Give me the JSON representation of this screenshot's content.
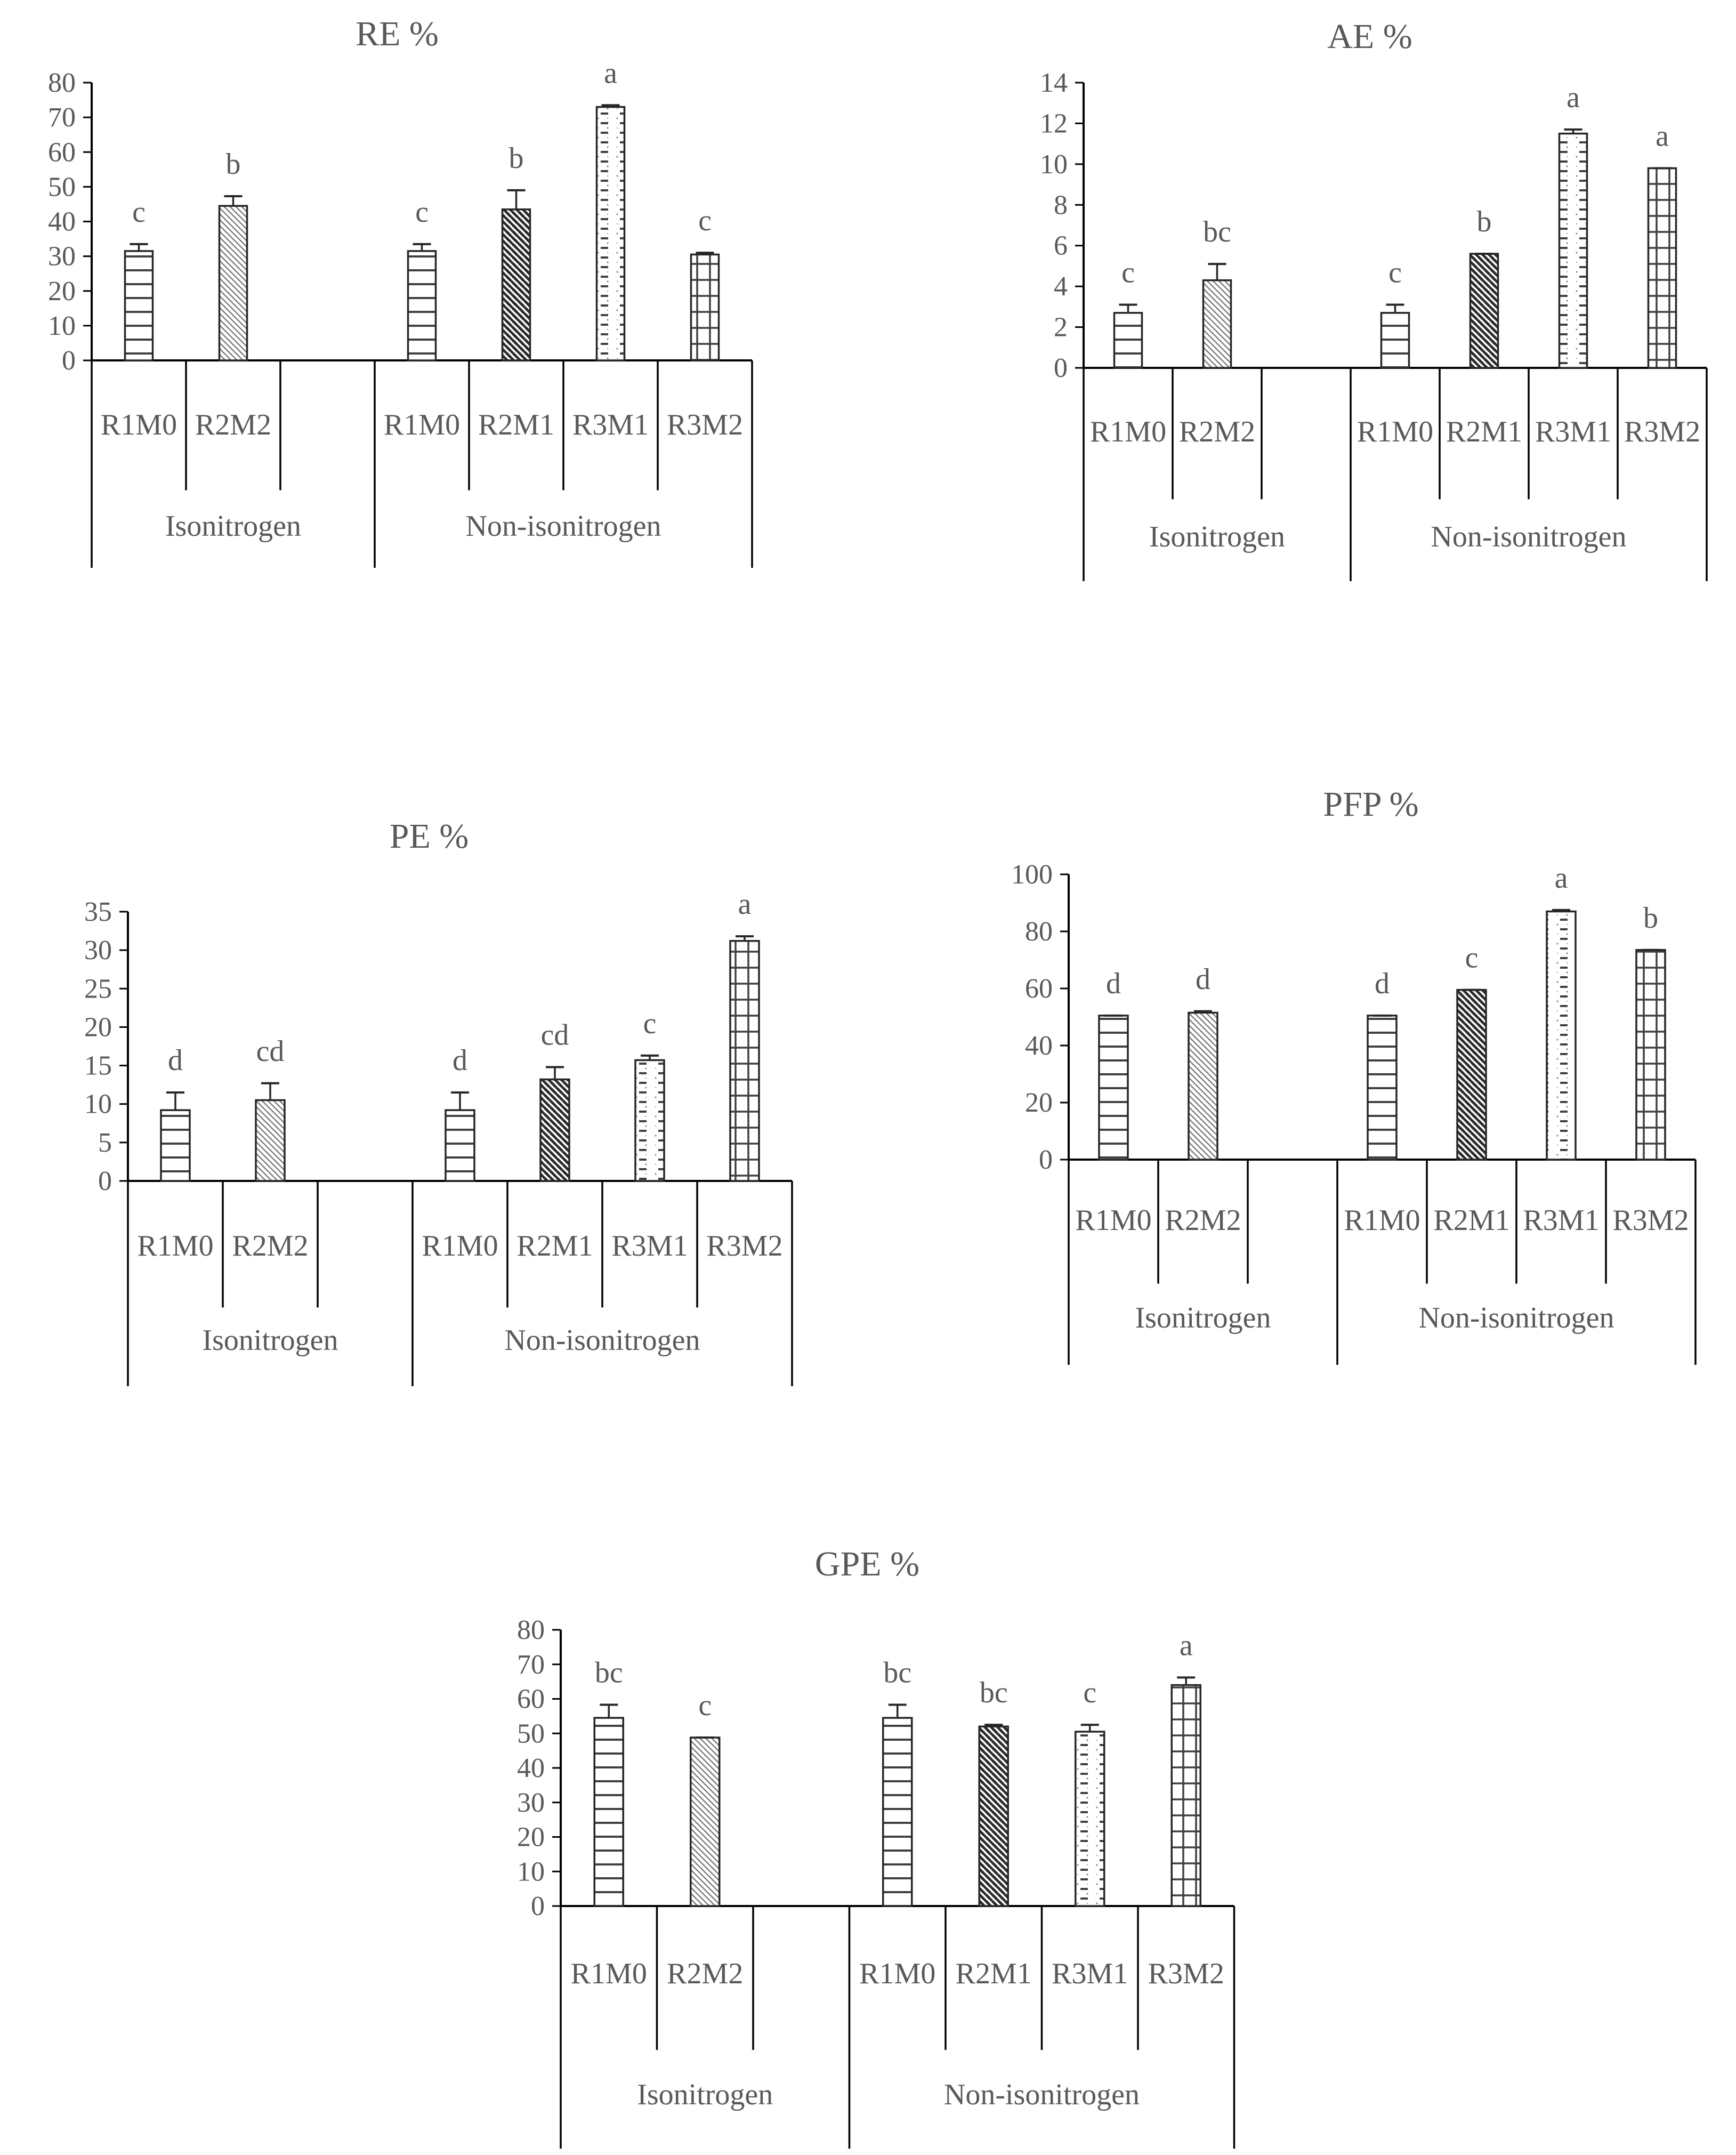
{
  "chart_data": [
    {
      "type": "bar",
      "title": "RE %",
      "ylim": [
        0,
        80
      ],
      "yticks": [
        0,
        10,
        20,
        30,
        40,
        50,
        60,
        70,
        80
      ],
      "groups": [
        {
          "label": "Isonitrogen",
          "slots": 3
        },
        {
          "label": "Non-isonitrogen",
          "slots": 4
        }
      ],
      "bars": [
        {
          "group": 0,
          "slot": 0,
          "category": "R1M0",
          "value": 31.5,
          "error": 2.0,
          "letter": "c",
          "pattern": "hlines"
        },
        {
          "group": 0,
          "slot": 1,
          "category": "R2M2",
          "value": 44.5,
          "error": 2.8,
          "letter": "b",
          "pattern": "diag-light"
        },
        {
          "group": 1,
          "slot": 0,
          "category": "R1M0",
          "value": 31.5,
          "error": 2.0,
          "letter": "c",
          "pattern": "hlines"
        },
        {
          "group": 1,
          "slot": 1,
          "category": "R2M1",
          "value": 43.5,
          "error": 5.5,
          "letter": "b",
          "pattern": "diag-dark"
        },
        {
          "group": 1,
          "slot": 2,
          "category": "R3M1",
          "value": 73.0,
          "error": 0.5,
          "letter": "a",
          "pattern": "dashdot"
        },
        {
          "group": 1,
          "slot": 3,
          "category": "R3M2",
          "value": 30.5,
          "error": 0.5,
          "letter": "c",
          "pattern": "grid"
        }
      ]
    },
    {
      "type": "bar",
      "title": "AE %",
      "ylim": [
        0,
        14
      ],
      "yticks": [
        0,
        2,
        4,
        6,
        8,
        10,
        12,
        14
      ],
      "groups": [
        {
          "label": "Isonitrogen",
          "slots": 3
        },
        {
          "label": "Non-isonitrogen",
          "slots": 4
        }
      ],
      "bars": [
        {
          "group": 0,
          "slot": 0,
          "category": "R1M0",
          "value": 2.7,
          "error": 0.4,
          "letter": "c",
          "pattern": "hlines"
        },
        {
          "group": 0,
          "slot": 1,
          "category": "R2M2",
          "value": 4.3,
          "error": 0.8,
          "letter": "bc",
          "pattern": "diag-light"
        },
        {
          "group": 1,
          "slot": 0,
          "category": "R1M0",
          "value": 2.7,
          "error": 0.4,
          "letter": "c",
          "pattern": "hlines"
        },
        {
          "group": 1,
          "slot": 1,
          "category": "R2M1",
          "value": 5.6,
          "error": 0.0,
          "letter": "b",
          "pattern": "diag-dark"
        },
        {
          "group": 1,
          "slot": 2,
          "category": "R3M1",
          "value": 11.5,
          "error": 0.2,
          "letter": "a",
          "pattern": "dashdot"
        },
        {
          "group": 1,
          "slot": 3,
          "category": "R3M2",
          "value": 9.8,
          "error": 0.0,
          "letter": "a",
          "pattern": "grid"
        }
      ]
    },
    {
      "type": "bar",
      "title": "PE %",
      "ylim": [
        0,
        35
      ],
      "yticks": [
        0,
        5,
        10,
        15,
        20,
        25,
        30,
        35
      ],
      "groups": [
        {
          "label": "Isonitrogen",
          "slots": 3
        },
        {
          "label": "Non-isonitrogen",
          "slots": 4
        }
      ],
      "bars": [
        {
          "group": 0,
          "slot": 0,
          "category": "R1M0",
          "value": 9.2,
          "error": 2.3,
          "letter": "d",
          "pattern": "hlines"
        },
        {
          "group": 0,
          "slot": 1,
          "category": "R2M2",
          "value": 10.5,
          "error": 2.2,
          "letter": "cd",
          "pattern": "diag-light"
        },
        {
          "group": 1,
          "slot": 0,
          "category": "R1M0",
          "value": 9.2,
          "error": 2.3,
          "letter": "d",
          "pattern": "hlines"
        },
        {
          "group": 1,
          "slot": 1,
          "category": "R2M1",
          "value": 13.2,
          "error": 1.6,
          "letter": "cd",
          "pattern": "diag-dark"
        },
        {
          "group": 1,
          "slot": 2,
          "category": "R3M1",
          "value": 15.7,
          "error": 0.6,
          "letter": "c",
          "pattern": "dashdot"
        },
        {
          "group": 1,
          "slot": 3,
          "category": "R3M2",
          "value": 31.2,
          "error": 0.6,
          "letter": "a",
          "pattern": "grid"
        }
      ]
    },
    {
      "type": "bar",
      "title": "PFP %",
      "ylim": [
        0,
        100
      ],
      "yticks": [
        0,
        20,
        40,
        60,
        80,
        100
      ],
      "groups": [
        {
          "label": "Isonitrogen",
          "slots": 3
        },
        {
          "label": "Non-isonitrogen",
          "slots": 4
        }
      ],
      "bars": [
        {
          "group": 0,
          "slot": 0,
          "category": "R1M0",
          "value": 50.5,
          "error": 0.0,
          "letter": "d",
          "pattern": "hlines"
        },
        {
          "group": 0,
          "slot": 1,
          "category": "R2M2",
          "value": 51.5,
          "error": 0.5,
          "letter": "d",
          "pattern": "diag-light"
        },
        {
          "group": 1,
          "slot": 0,
          "category": "R1M0",
          "value": 50.5,
          "error": 0.0,
          "letter": "d",
          "pattern": "hlines"
        },
        {
          "group": 1,
          "slot": 1,
          "category": "R2M1",
          "value": 59.5,
          "error": 0.0,
          "letter": "c",
          "pattern": "diag-dark"
        },
        {
          "group": 1,
          "slot": 2,
          "category": "R3M1",
          "value": 87.0,
          "error": 0.5,
          "letter": "a",
          "pattern": "dashdot"
        },
        {
          "group": 1,
          "slot": 3,
          "category": "R3M2",
          "value": 73.5,
          "error": 0.0,
          "letter": "b",
          "pattern": "grid"
        }
      ]
    },
    {
      "type": "bar",
      "title": "GPE %",
      "ylim": [
        0,
        80
      ],
      "yticks": [
        0,
        10,
        20,
        30,
        40,
        50,
        60,
        70,
        80
      ],
      "groups": [
        {
          "label": "Isonitrogen",
          "slots": 3
        },
        {
          "label": "Non-isonitrogen",
          "slots": 4
        }
      ],
      "bars": [
        {
          "group": 0,
          "slot": 0,
          "category": "R1M0",
          "value": 54.5,
          "error": 3.8,
          "letter": "bc",
          "pattern": "hlines"
        },
        {
          "group": 0,
          "slot": 1,
          "category": "R2M2",
          "value": 48.8,
          "error": 0.0,
          "letter": "c",
          "pattern": "diag-light"
        },
        {
          "group": 1,
          "slot": 0,
          "category": "R1M0",
          "value": 54.5,
          "error": 3.8,
          "letter": "bc",
          "pattern": "hlines"
        },
        {
          "group": 1,
          "slot": 1,
          "category": "R2M1",
          "value": 52.0,
          "error": 0.5,
          "letter": "bc",
          "pattern": "diag-dark"
        },
        {
          "group": 1,
          "slot": 2,
          "category": "R3M1",
          "value": 50.5,
          "error": 2.0,
          "letter": "c",
          "pattern": "dashdot"
        },
        {
          "group": 1,
          "slot": 3,
          "category": "R3M2",
          "value": 64.0,
          "error": 2.2,
          "letter": "a",
          "pattern": "grid"
        }
      ]
    }
  ]
}
